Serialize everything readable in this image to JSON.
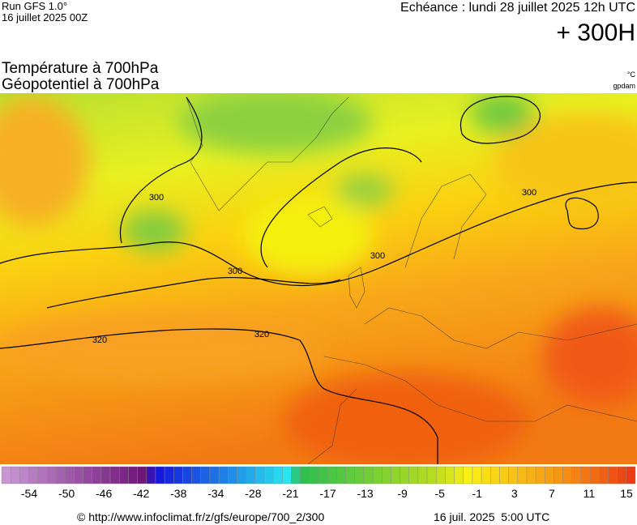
{
  "header": {
    "run": "Run GFS 1.0°",
    "run_date": "16 juillet 2025 00Z",
    "valid": "Echéance : lundi 28 juillet 2025 12h UTC",
    "lead": "+ 300H"
  },
  "titles": {
    "temperature": "Température à 700hPa",
    "geopotential": "Géopotentiel à 700hPa",
    "unit_temp": "°C",
    "unit_geo": "gpdam"
  },
  "map": {
    "contour_labels": [
      "300",
      "300",
      "300",
      "300",
      "320",
      "320"
    ]
  },
  "colorbar": {
    "labels": [
      -54,
      -50,
      -46,
      -42,
      -38,
      -34,
      -28,
      -21,
      -17,
      -13,
      -9,
      -5,
      -1,
      3,
      7,
      11,
      15
    ]
  },
  "footer": {
    "url": "© http://www.infoclimat.fr/z/gfs/europe/700_2/300",
    "date": "16 juil. 2025  5:00 UTC"
  }
}
